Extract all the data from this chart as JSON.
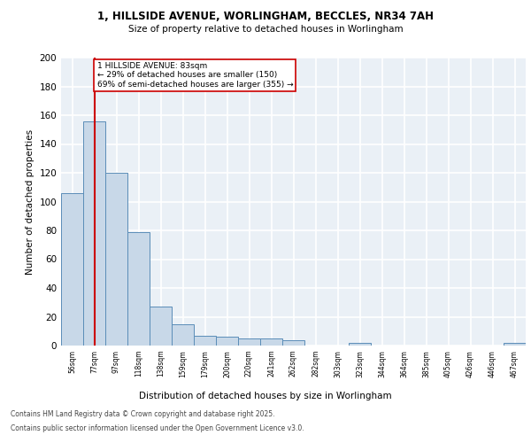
{
  "title_line1": "1, HILLSIDE AVENUE, WORLINGHAM, BECCLES, NR34 7AH",
  "title_line2": "Size of property relative to detached houses in Worlingham",
  "xlabel": "Distribution of detached houses by size in Worlingham",
  "ylabel": "Number of detached properties",
  "categories": [
    "56sqm",
    "77sqm",
    "97sqm",
    "118sqm",
    "138sqm",
    "159sqm",
    "179sqm",
    "200sqm",
    "220sqm",
    "241sqm",
    "262sqm",
    "282sqm",
    "303sqm",
    "323sqm",
    "344sqm",
    "364sqm",
    "385sqm",
    "405sqm",
    "426sqm",
    "446sqm",
    "467sqm"
  ],
  "values": [
    106,
    156,
    120,
    79,
    27,
    15,
    7,
    6,
    5,
    5,
    4,
    0,
    0,
    2,
    0,
    0,
    0,
    0,
    0,
    0,
    2
  ],
  "bar_color": "#c8d8e8",
  "bar_edge_color": "#5b8db8",
  "vline_x": 1,
  "vline_color": "#cc0000",
  "annotation_text": "1 HILLSIDE AVENUE: 83sqm\n← 29% of detached houses are smaller (150)\n69% of semi-detached houses are larger (355) →",
  "annotation_box_color": "white",
  "annotation_box_edge": "#cc0000",
  "ylim": [
    0,
    200
  ],
  "yticks": [
    0,
    20,
    40,
    60,
    80,
    100,
    120,
    140,
    160,
    180,
    200
  ],
  "background_color": "#eaf0f6",
  "grid_color": "white",
  "footer_line1": "Contains HM Land Registry data © Crown copyright and database right 2025.",
  "footer_line2": "Contains public sector information licensed under the Open Government Licence v3.0."
}
